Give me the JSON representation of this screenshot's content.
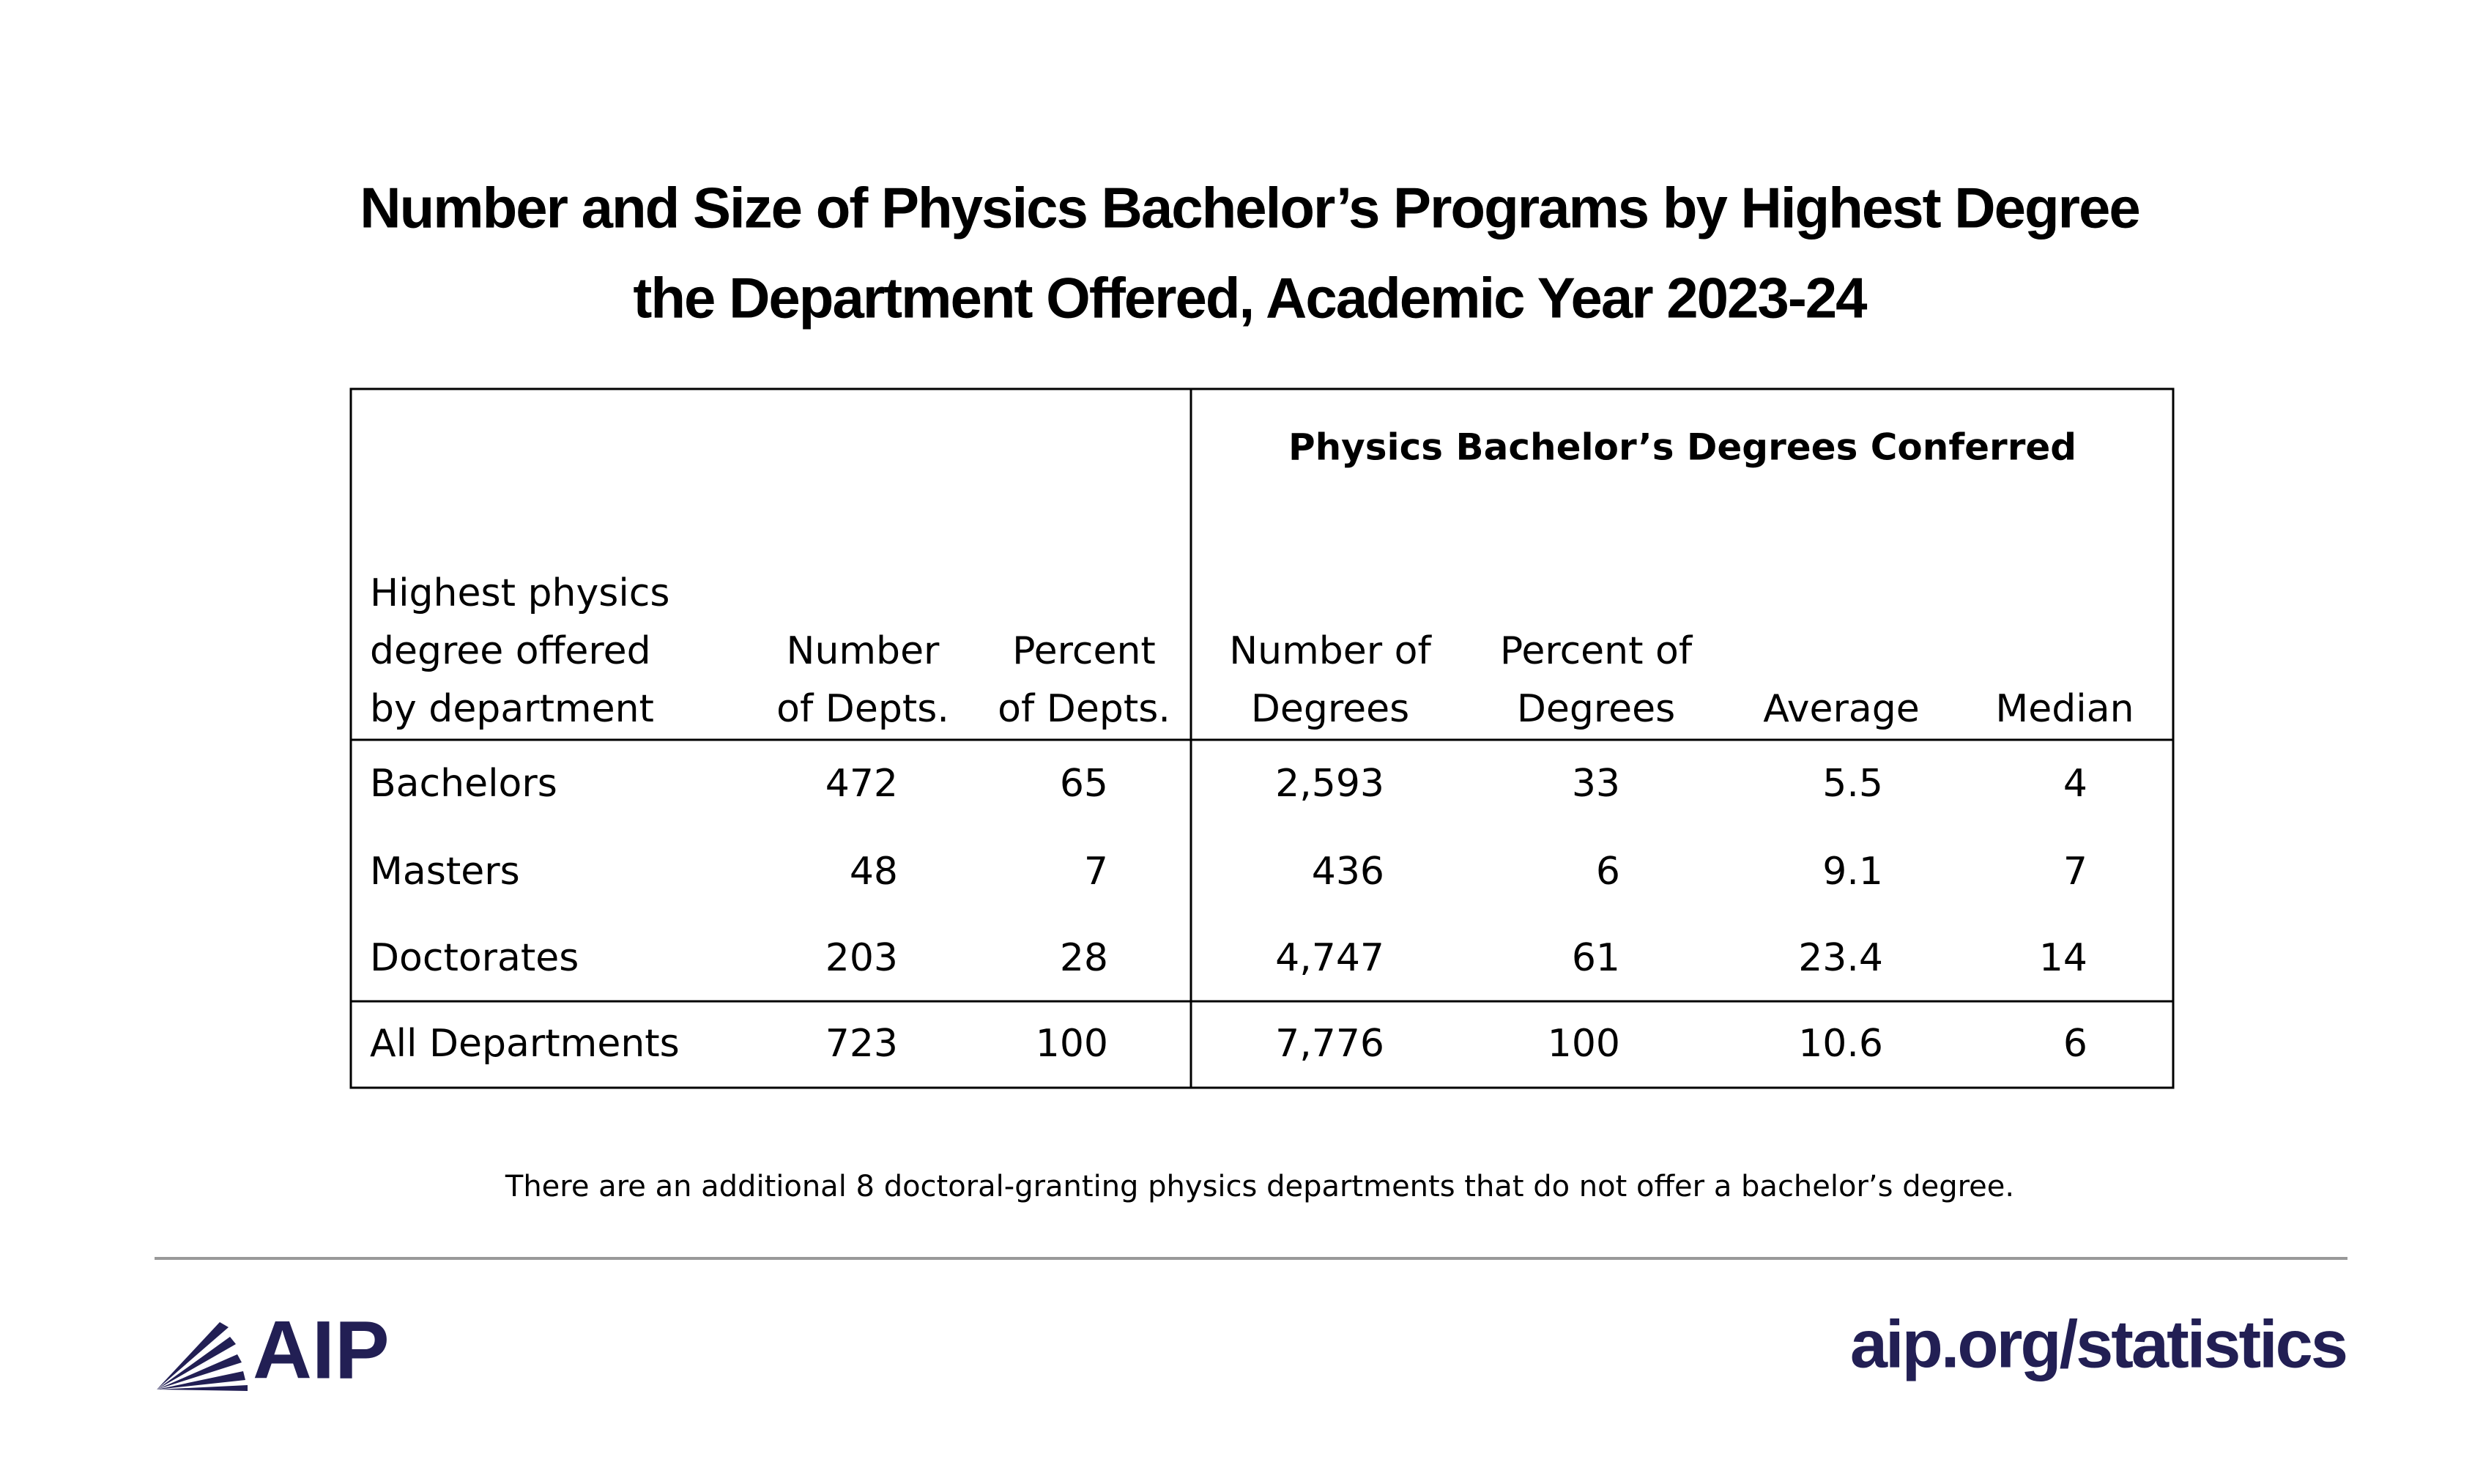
{
  "header": {
    "title": [
      "Number and Size of Physics Bachelor’s Programs by Highest Degree",
      "the Department Offered, Academic Year 2023-24"
    ]
  },
  "table": {
    "group_header": "Physics Bachelor’s Degrees Conferred",
    "columns": [
      [
        "Highest physics",
        "degree offered",
        "by department"
      ],
      [
        "Number",
        "of Depts."
      ],
      [
        "Percent",
        "of Depts."
      ],
      [
        "Number of",
        "Degrees"
      ],
      [
        "Percent of",
        "Degrees"
      ],
      [
        "Average"
      ],
      [
        "Median"
      ]
    ],
    "rows": [
      [
        "Bachelors",
        "472",
        "65",
        "2,593",
        "33",
        "5.5",
        "4"
      ],
      [
        "Masters",
        "48",
        "7",
        "436",
        "6",
        "9.1",
        "7"
      ],
      [
        "Doctorates",
        "203",
        "28",
        "4,747",
        "61",
        "23.4",
        "14"
      ],
      [
        "All Departments",
        "723",
        "100",
        "7,776",
        "100",
        "10.6",
        "6"
      ]
    ]
  },
  "footer": {
    "note": "There are an additional 8 doctoral-granting physics departments that do not offer a bachelor’s degree.",
    "logo": "AIP",
    "url": "aip.org/statistics"
  }
}
